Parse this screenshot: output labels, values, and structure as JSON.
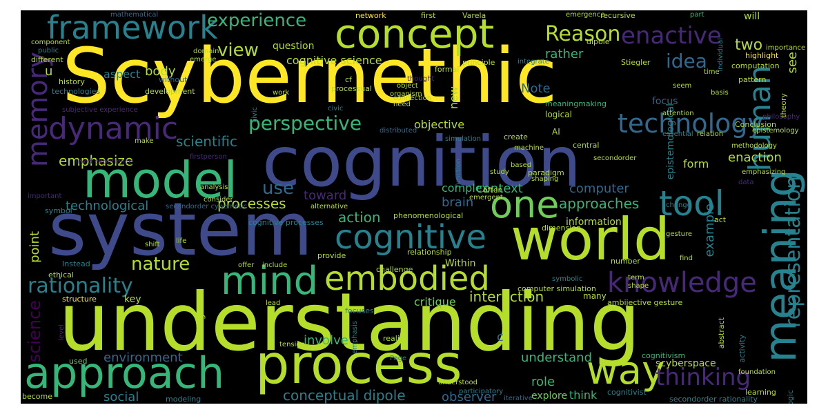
{
  "palette": {
    "background": "#000000",
    "viridis": [
      "#440154",
      "#482878",
      "#3e4a89",
      "#31688e",
      "#26828e",
      "#1f9e89",
      "#35b779",
      "#6ece58",
      "#b5de2b",
      "#fde725"
    ]
  },
  "words": {
    "scybernethic": "Scybernethic",
    "cognition": "cognition",
    "system": "system",
    "understanding": "understanding",
    "process": "process",
    "world": "world",
    "model": "model",
    "concept": "concept",
    "approach": "approach",
    "framework": "framework",
    "meaning": "meaning",
    "embodied": "embodied",
    "mind": "mind",
    "one": "one",
    "cognitive": "cognitive",
    "way": "way",
    "knowledge": "knowledge",
    "tool": "tool",
    "technology": "technology",
    "dynamic": "dynamic",
    "memory": "memory",
    "human": "human",
    "representation": "representation",
    "rationality": "rationality",
    "thinking": "thinking",
    "experience": "experience",
    "reason": "Reason",
    "enactive": "enactive",
    "perspective": "perspective",
    "nature": "nature",
    "view": "view",
    "idea": "idea",
    "two": "two",
    "emphasize": "emphasize",
    "scientific": "scientific",
    "use": "use",
    "technological": "technological",
    "processes": "processes",
    "approaches": "approaches",
    "action": "action",
    "interaction": "interaction",
    "understand": "understand",
    "conceptual_dipole": "conceptual dipole",
    "environment": "environment",
    "social": "social",
    "science": "science",
    "point": "point",
    "enaction": "enaction",
    "example": "example",
    "computer": "computer",
    "brain": "brain",
    "context": "context",
    "toward": "toward",
    "body": "body",
    "aspect": "aspect",
    "rather": "rather",
    "cognitive_science": "cognitive science",
    "question": "question",
    "objective": "objective",
    "form": "form",
    "involve": "involve",
    "critique": "critique",
    "role": "role",
    "explore": "explore",
    "observer": "observer",
    "think": "think",
    "scyberspace": "scyberspace",
    "complex": "complex",
    "information": "information",
    "new": "new",
    "note": "Note",
    "see": "see",
    "focus": "focus",
    "epistemological": "epistemological",
    "key": "key",
    "c": "c",
    "u": "u",
    "mathematical": "mathematical",
    "network": "network",
    "first": "first",
    "varela": "Varela",
    "emergence": "emergence",
    "recursive": "recursive",
    "part": "part",
    "will": "will",
    "importance": "importance",
    "component": "component",
    "public": "public",
    "different": "different",
    "history": "history",
    "technologies": "technologies",
    "without": "without",
    "development": "development",
    "subjective_experience": "subjective experience",
    "lived_experience": "lived experience",
    "make": "make",
    "important": "important",
    "symbol": "symbol",
    "ethical": "ethical",
    "structure": "structure",
    "instead": "Instead",
    "become": "become",
    "used": "used",
    "modeling": "modeling",
    "level": "level",
    "biological": "biological",
    "tension": "tension",
    "lead": "lead",
    "page": "Page",
    "reality": "reality",
    "emphasis": "emphasis",
    "focuses": "focuses",
    "understood": "understood",
    "participatory": "participatory",
    "iterative": "iterative",
    "cognitivist": "cognitivist",
    "cognitivism": "cognitivism",
    "secondorder_rationality": "secondorder rationality",
    "learning": "learning",
    "logic": "logic",
    "foundation": "foundation",
    "activity": "activity",
    "abstract": "abstract",
    "ambijective_gesture": "ambijective gesture",
    "computer_simulation": "computer simulation",
    "many": "many",
    "symbolic": "symbolic",
    "shape": "shape",
    "term": "term",
    "number": "number",
    "find": "find",
    "gesture": "gesture",
    "act": "act",
    "change": "change",
    "emphasizing": "emphasizing",
    "data": "data",
    "methodology": "methodology",
    "relation": "relation",
    "essential": "essential",
    "epistemology": "epistemology",
    "conclusion": "Conclusion",
    "philosophy": "philosophy",
    "theory": "theory",
    "attention": "attention",
    "basis": "basis",
    "seem": "seem",
    "pattern": "pattern",
    "individual": "individual",
    "time": "time",
    "computation": "computation",
    "highlight": "highlight",
    "stiegler": "Stiegler",
    "integrate": "integrate",
    "principle": "principle",
    "formal": "formal",
    "dipole": "dipole",
    "emerge": "emerge",
    "domain": "domain",
    "cf": "cf",
    "thought": "thought",
    "object": "object",
    "organism": "organism",
    "processual": "processual",
    "need": "need",
    "connection": "connection",
    "meaningmaking": "meaningmaking",
    "logical": "logical",
    "ai": "AI",
    "create": "create",
    "simulation": "simulation",
    "distributed": "distributed",
    "civic": "civic",
    "work": "work",
    "central": "central",
    "machine": "machine",
    "secondorder": "secondorder",
    "paradigm": "paradigm",
    "based": "based",
    "shaping": "shaping",
    "study": "study",
    "function": "function",
    "often": "often",
    "emergent": "emergent",
    "firstperson": "firstperson",
    "secondorder_cybernetic": "secondorder cybernetic",
    "analysis": "analysis",
    "consider": "consider",
    "shift": "shift",
    "life": "life",
    "alternative": "alternative",
    "cognitive_processes": "cognitive processes",
    "phenomenological": "phenomenological",
    "relationship": "relationship",
    "provide": "provide",
    "within": "Within",
    "challenge": "challenge",
    "include": "include",
    "offer": "offer",
    "dimension": "dimension"
  }
}
